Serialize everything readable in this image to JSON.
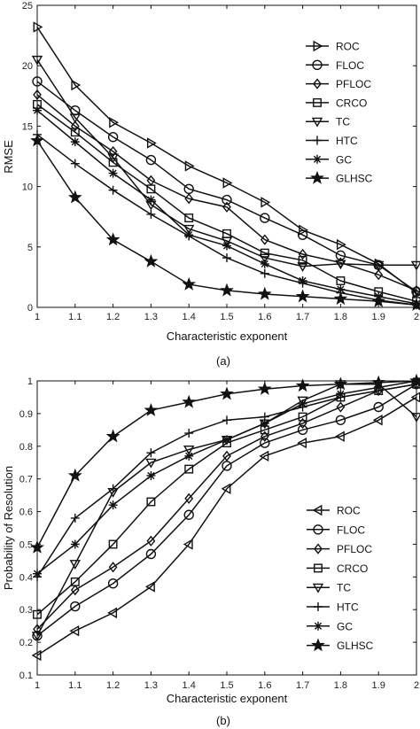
{
  "chart_data": [
    {
      "type": "line",
      "caption": "(a)",
      "xlabel": "Characteristic exponent",
      "ylabel": "RMSE",
      "xlim": [
        1,
        2
      ],
      "ylim": [
        0,
        25
      ],
      "xticks": [
        "1",
        "1.1",
        "1.2",
        "1.3",
        "1.4",
        "1.5",
        "1.6",
        "1.7",
        "1.8",
        "1.9",
        "2"
      ],
      "yticks": [
        "0",
        "5",
        "10",
        "15",
        "20",
        "25"
      ],
      "legend_position": "top-right",
      "grid": false,
      "x": [
        1,
        1.1,
        1.2,
        1.3,
        1.4,
        1.5,
        1.6,
        1.7,
        1.8,
        1.9,
        2
      ],
      "series": [
        {
          "name": "ROC",
          "marker": "triangle-right",
          "values": [
            23.2,
            18.4,
            15.3,
            13.6,
            11.7,
            10.3,
            8.7,
            6.4,
            5.2,
            3.6,
            1.2
          ]
        },
        {
          "name": "FLOC",
          "marker": "circle",
          "values": [
            18.7,
            16.3,
            14.1,
            12.2,
            9.8,
            8.9,
            7.4,
            6.0,
            4.3,
            3.5,
            1.3
          ]
        },
        {
          "name": "PFLOC",
          "marker": "diamond",
          "values": [
            17.6,
            15.0,
            12.9,
            10.5,
            9.0,
            8.3,
            5.6,
            4.4,
            3.7,
            2.7,
            1.4
          ]
        },
        {
          "name": "CRCO",
          "marker": "square",
          "values": [
            16.8,
            14.5,
            12.0,
            9.8,
            7.4,
            6.1,
            4.5,
            3.9,
            2.2,
            1.3,
            0.5
          ]
        },
        {
          "name": "TC",
          "marker": "triangle-down",
          "values": [
            20.5,
            15.7,
            12.4,
            8.5,
            6.5,
            5.5,
            4.1,
            3.4,
            3.6,
            3.5,
            3.5
          ]
        },
        {
          "name": "HTC",
          "marker": "plus",
          "values": [
            14.3,
            11.9,
            9.7,
            7.7,
            5.9,
            4.1,
            2.8,
            2.0,
            1.2,
            0.6,
            0.2
          ]
        },
        {
          "name": "GC",
          "marker": "asterisk",
          "values": [
            16.3,
            13.7,
            11.1,
            8.9,
            6.0,
            5.1,
            3.6,
            2.2,
            1.5,
            0.9,
            0.3
          ]
        },
        {
          "name": "GLHSC",
          "marker": "star",
          "values": [
            13.8,
            9.1,
            5.6,
            3.8,
            1.9,
            1.4,
            1.1,
            0.9,
            0.7,
            0.5,
            0.2
          ]
        }
      ]
    },
    {
      "type": "line",
      "caption": "(b)",
      "xlabel": "Characteristic exponent",
      "ylabel": "Probability of Resolution",
      "xlim": [
        1,
        2
      ],
      "ylim": [
        0.1,
        1
      ],
      "xticks": [
        "1",
        "1.1",
        "1.2",
        "1.3",
        "1.4",
        "1.5",
        "1.6",
        "1.7",
        "1.8",
        "1.9",
        "2"
      ],
      "yticks": [
        "0.1",
        "0.2",
        "0.3",
        "0.4",
        "0.5",
        "0.6",
        "0.7",
        "0.8",
        "0.9",
        "1"
      ],
      "legend_position": "bottom-right",
      "grid": false,
      "x": [
        1,
        1.1,
        1.2,
        1.3,
        1.4,
        1.5,
        1.6,
        1.7,
        1.8,
        1.9,
        2
      ],
      "series": [
        {
          "name": "ROC",
          "marker": "triangle-left",
          "values": [
            0.16,
            0.235,
            0.29,
            0.37,
            0.5,
            0.67,
            0.77,
            0.81,
            0.83,
            0.88,
            0.95
          ]
        },
        {
          "name": "FLOC",
          "marker": "circle",
          "values": [
            0.22,
            0.31,
            0.38,
            0.47,
            0.59,
            0.74,
            0.81,
            0.85,
            0.88,
            0.92,
            0.99
          ]
        },
        {
          "name": "PFLOC",
          "marker": "diamond",
          "values": [
            0.24,
            0.36,
            0.43,
            0.51,
            0.64,
            0.77,
            0.83,
            0.87,
            0.92,
            0.97,
            0.99
          ]
        },
        {
          "name": "CRCO",
          "marker": "square",
          "values": [
            0.285,
            0.385,
            0.5,
            0.63,
            0.73,
            0.81,
            0.85,
            0.89,
            0.95,
            0.97,
            0.99
          ]
        },
        {
          "name": "TC",
          "marker": "triangle-down",
          "values": [
            0.22,
            0.44,
            0.66,
            0.75,
            0.79,
            0.82,
            0.87,
            0.94,
            0.99,
            0.99,
            0.89
          ]
        },
        {
          "name": "HTC",
          "marker": "plus",
          "values": [
            0.4,
            0.58,
            0.67,
            0.78,
            0.84,
            0.88,
            0.89,
            0.92,
            0.95,
            0.97,
            0.99
          ]
        },
        {
          "name": "GC",
          "marker": "asterisk",
          "values": [
            0.41,
            0.5,
            0.62,
            0.71,
            0.77,
            0.82,
            0.87,
            0.93,
            0.96,
            0.98,
            1.0
          ]
        },
        {
          "name": "GLHSC",
          "marker": "star",
          "values": [
            0.49,
            0.71,
            0.83,
            0.91,
            0.935,
            0.96,
            0.975,
            0.985,
            0.99,
            0.995,
            1.0
          ]
        }
      ]
    }
  ]
}
